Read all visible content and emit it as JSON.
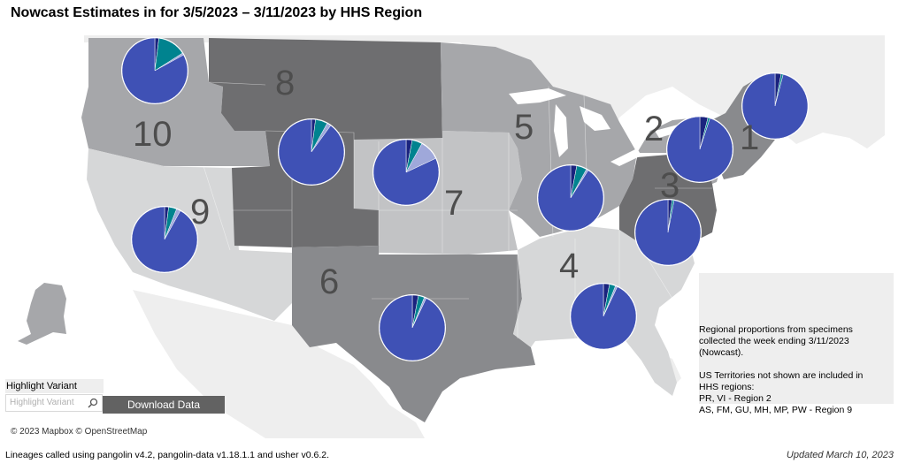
{
  "title": "Nowcast Estimates in for 3/5/2023 – 3/11/2023 by HHS Region",
  "colors": {
    "dominant": "#3f51b5",
    "navy": "#1a237e",
    "teal": "#00838f",
    "lightblue": "#9fa8da",
    "gray": "#9e9e9e",
    "region_shades": [
      "#6e6e70",
      "#898a8d",
      "#a6a7aa",
      "#c2c3c5",
      "#d6d7d8"
    ]
  },
  "regions": [
    {
      "number": "1"
    },
    {
      "number": "2"
    },
    {
      "number": "3"
    },
    {
      "number": "4"
    },
    {
      "number": "5"
    },
    {
      "number": "6"
    },
    {
      "number": "7"
    },
    {
      "number": "8"
    },
    {
      "number": "9"
    },
    {
      "number": "10"
    }
  ],
  "region_pies": [
    {
      "region": "1",
      "slices": [
        0.96,
        0.03,
        0.01
      ]
    },
    {
      "region": "2",
      "slices": [
        0.95,
        0.04,
        0.01
      ]
    },
    {
      "region": "3",
      "slices": [
        0.97,
        0.02,
        0.01
      ]
    },
    {
      "region": "4",
      "slices": [
        0.93,
        0.03,
        0.03,
        0.01
      ]
    },
    {
      "region": "5",
      "slices": [
        0.91,
        0.03,
        0.05,
        0.01
      ]
    },
    {
      "region": "6",
      "slices": [
        0.93,
        0.03,
        0.03,
        0.01
      ]
    },
    {
      "region": "7",
      "slices": [
        0.82,
        0.03,
        0.05,
        0.1
      ]
    },
    {
      "region": "8",
      "slices": [
        0.9,
        0.02,
        0.06,
        0.02
      ]
    },
    {
      "region": "9",
      "slices": [
        0.92,
        0.02,
        0.04,
        0.02
      ]
    },
    {
      "region": "10",
      "slices": [
        0.83,
        0.02,
        0.14,
        0.01
      ]
    }
  ],
  "info": {
    "line1": "Regional proportions from specimens",
    "line2": "collected the week ending 3/11/2023",
    "line3": "(Nowcast).",
    "line4": "US Territories not shown are included in",
    "line5": "HHS regions:",
    "line6": "PR, VI - Region 2",
    "line7": "AS, FM, GU, MH, MP, PW - Region 9"
  },
  "highlight": {
    "label": "Highlight Variant",
    "placeholder": "Highlight Variant"
  },
  "download_label": "Download Data",
  "copyright": "© 2023 Mapbox  © OpenStreetMap",
  "footer_left": "Lineages called using pangolin v4.2, pangolin-data v1.18.1.1 and usher v0.6.2.",
  "footer_right": "Updated March 10, 2023"
}
